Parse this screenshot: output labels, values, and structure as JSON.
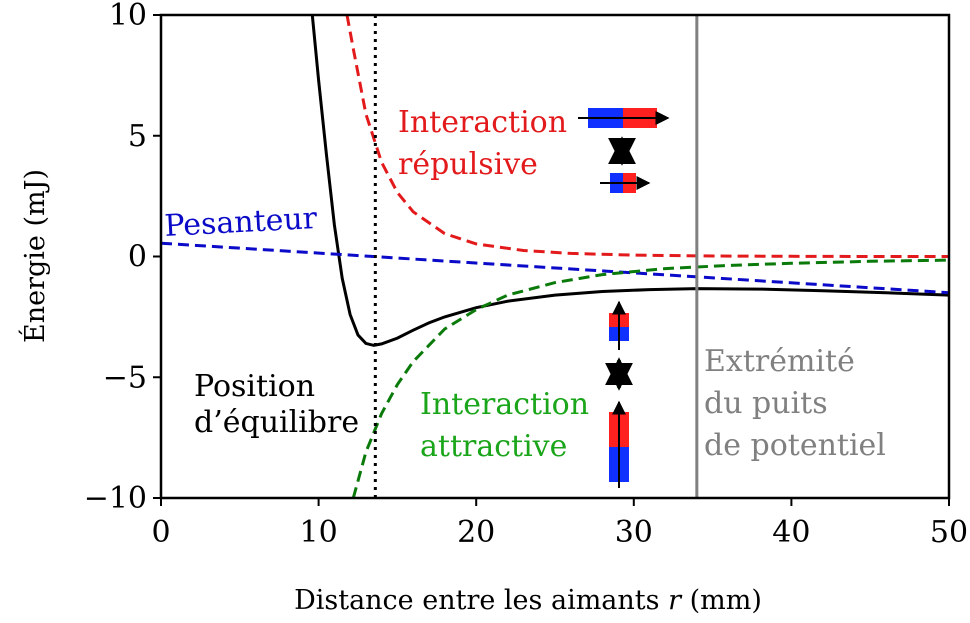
{
  "chart_data": {
    "type": "line",
    "xlabel": "Distance entre les aimants",
    "xlabel_var": "r",
    "xlabel_unit": "(mm)",
    "ylabel": "Énergie (mJ)",
    "xlim": [
      0,
      50
    ],
    "ylim": [
      -10,
      10
    ],
    "xticks": [
      0,
      10,
      20,
      30,
      40,
      50
    ],
    "xtick_labels": [
      "0",
      "10",
      "20",
      "30",
      "40",
      "50"
    ],
    "yticks": [
      -10,
      -5,
      0,
      5,
      10
    ],
    "ytick_labels": [
      "−10",
      "−5",
      "0",
      "5",
      "10"
    ],
    "grid": false,
    "colors": {
      "total": "#000000",
      "repulsive": "#e31a1c",
      "gravity": "#0a0ac8",
      "attractive": "#0a7a0a",
      "well_edge": "#808080",
      "magnet_red": "#ff2020",
      "magnet_blue": "#1030ff",
      "arrow_red": "#ff2020",
      "arrow_green": "#10b010"
    },
    "series": [
      {
        "key": "total",
        "style": "solid",
        "x": [
          9.6,
          10,
          10.5,
          11,
          11.5,
          12,
          12.5,
          13,
          13.5,
          14,
          15,
          16,
          17,
          18,
          20,
          22,
          25,
          28,
          31,
          34,
          38,
          42,
          46,
          50
        ],
        "y": [
          10,
          7.3,
          4.2,
          1.3,
          -0.9,
          -2.4,
          -3.25,
          -3.6,
          -3.68,
          -3.62,
          -3.38,
          -3.05,
          -2.75,
          -2.5,
          -2.12,
          -1.85,
          -1.6,
          -1.45,
          -1.37,
          -1.33,
          -1.35,
          -1.42,
          -1.5,
          -1.6
        ]
      },
      {
        "key": "repulsive",
        "style": "dashed",
        "x": [
          11.8,
          12.2,
          13,
          14,
          15,
          16,
          18,
          20,
          23,
          26,
          30,
          35,
          40,
          45,
          50
        ],
        "y": [
          10,
          8.6,
          5.9,
          3.9,
          2.65,
          1.85,
          0.95,
          0.52,
          0.25,
          0.13,
          0.06,
          0.02,
          0.01,
          0.0,
          0.0
        ]
      },
      {
        "key": "gravity",
        "style": "dashed",
        "x": [
          0,
          50
        ],
        "y": [
          0.55,
          -1.5
        ]
      },
      {
        "key": "attractive",
        "style": "dashed",
        "x": [
          12.2,
          13,
          14,
          15,
          16,
          18,
          20,
          22,
          25,
          28,
          32,
          36,
          40,
          45,
          50
        ],
        "y": [
          -10,
          -8.1,
          -6.5,
          -5.3,
          -4.35,
          -3.0,
          -2.2,
          -1.6,
          -1.08,
          -0.75,
          -0.5,
          -0.37,
          -0.28,
          -0.2,
          -0.15
        ]
      }
    ],
    "equilibrium_r": 13.6,
    "well_edge_r": 34,
    "annotations": {
      "gravity": "Pesanteur",
      "repulsive_line1": "Interaction",
      "repulsive_line2": "répulsive",
      "attractive_line1": "Interaction",
      "attractive_line2": "attractive",
      "equilibrium_line1": "Position",
      "equilibrium_line2": "d’équilibre",
      "well_line1": "Extrémité",
      "well_line2": "du puits",
      "well_line3": "de potentiel"
    }
  }
}
